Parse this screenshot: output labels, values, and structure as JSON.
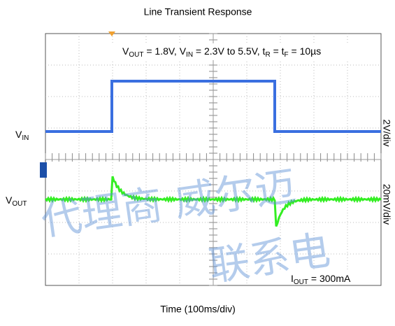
{
  "title": "Line Transient Response",
  "x_label": "Time (100ms/div)",
  "conditions": [
    {
      "text": "V",
      "sub": false
    },
    {
      "text": "OUT",
      "sub": true
    },
    {
      "text": " = 1.8V, V",
      "sub": false
    },
    {
      "text": "IN",
      "sub": true
    },
    {
      "text": " = 2.3V to 5.5V, t",
      "sub": false
    },
    {
      "text": "R",
      "sub": true
    },
    {
      "text": " = t",
      "sub": false
    },
    {
      "text": "F",
      "sub": true
    },
    {
      "text": " = 10µs",
      "sub": false
    }
  ],
  "load": [
    {
      "text": "I",
      "sub": false
    },
    {
      "text": "OUT",
      "sub": true
    },
    {
      "text": " = 300mA",
      "sub": false
    }
  ],
  "vin_label": [
    {
      "text": "V",
      "sub": false
    },
    {
      "text": "IN",
      "sub": true
    }
  ],
  "vout_label": [
    {
      "text": "V",
      "sub": false
    },
    {
      "text": "OUT",
      "sub": true
    }
  ],
  "vin_scale": "2V/div",
  "vout_scale": "20mV/div",
  "watermark": [
    "代理商 威尔迈",
    "联系电"
  ]
}
